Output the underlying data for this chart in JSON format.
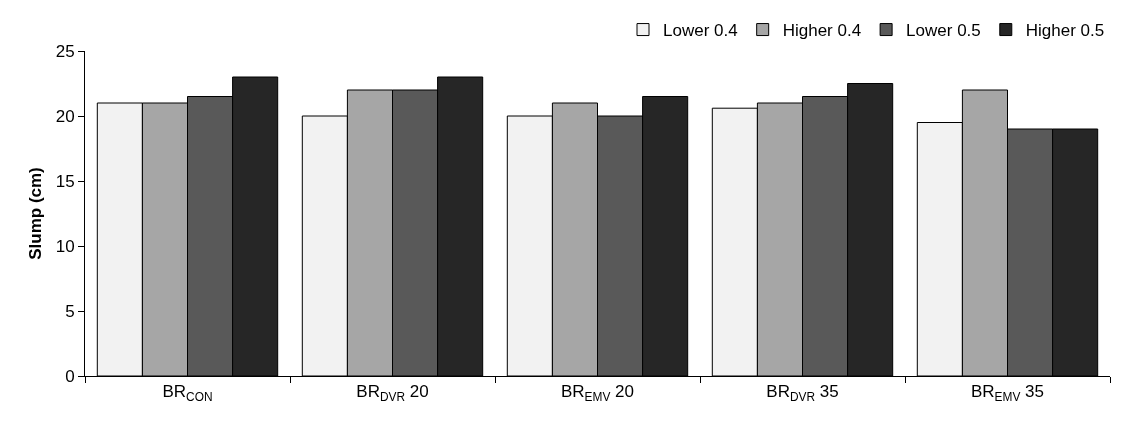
{
  "chart_data": {
    "type": "bar",
    "ylabel": "Slump (cm)",
    "categories": [
      "BR$_{CON}$",
      "BR$_{DVR}$ 20",
      "BR$_{EMV}$ 20",
      "BR$_{DVR}$ 35",
      "BR$_{EMV}$ 35"
    ],
    "series": [
      {
        "name": "Lower 0.4",
        "color": "#f2f2f2",
        "values": [
          21,
          20,
          20,
          20.6,
          19.5
        ]
      },
      {
        "name": "Higher 0.4",
        "color": "#a6a6a6",
        "values": [
          21,
          22,
          21,
          21,
          22
        ]
      },
      {
        "name": "Lower 0.5",
        "color": "#595959",
        "values": [
          21.5,
          22,
          20,
          21.5,
          19
        ]
      },
      {
        "name": "Higher 0.5",
        "color": "#262626",
        "values": [
          23,
          23,
          21.5,
          22.5,
          19
        ]
      }
    ],
    "ylim": [
      0,
      25
    ],
    "yticks": [
      0,
      5,
      10,
      15,
      20,
      25
    ],
    "grid": false,
    "legend": "top right"
  }
}
